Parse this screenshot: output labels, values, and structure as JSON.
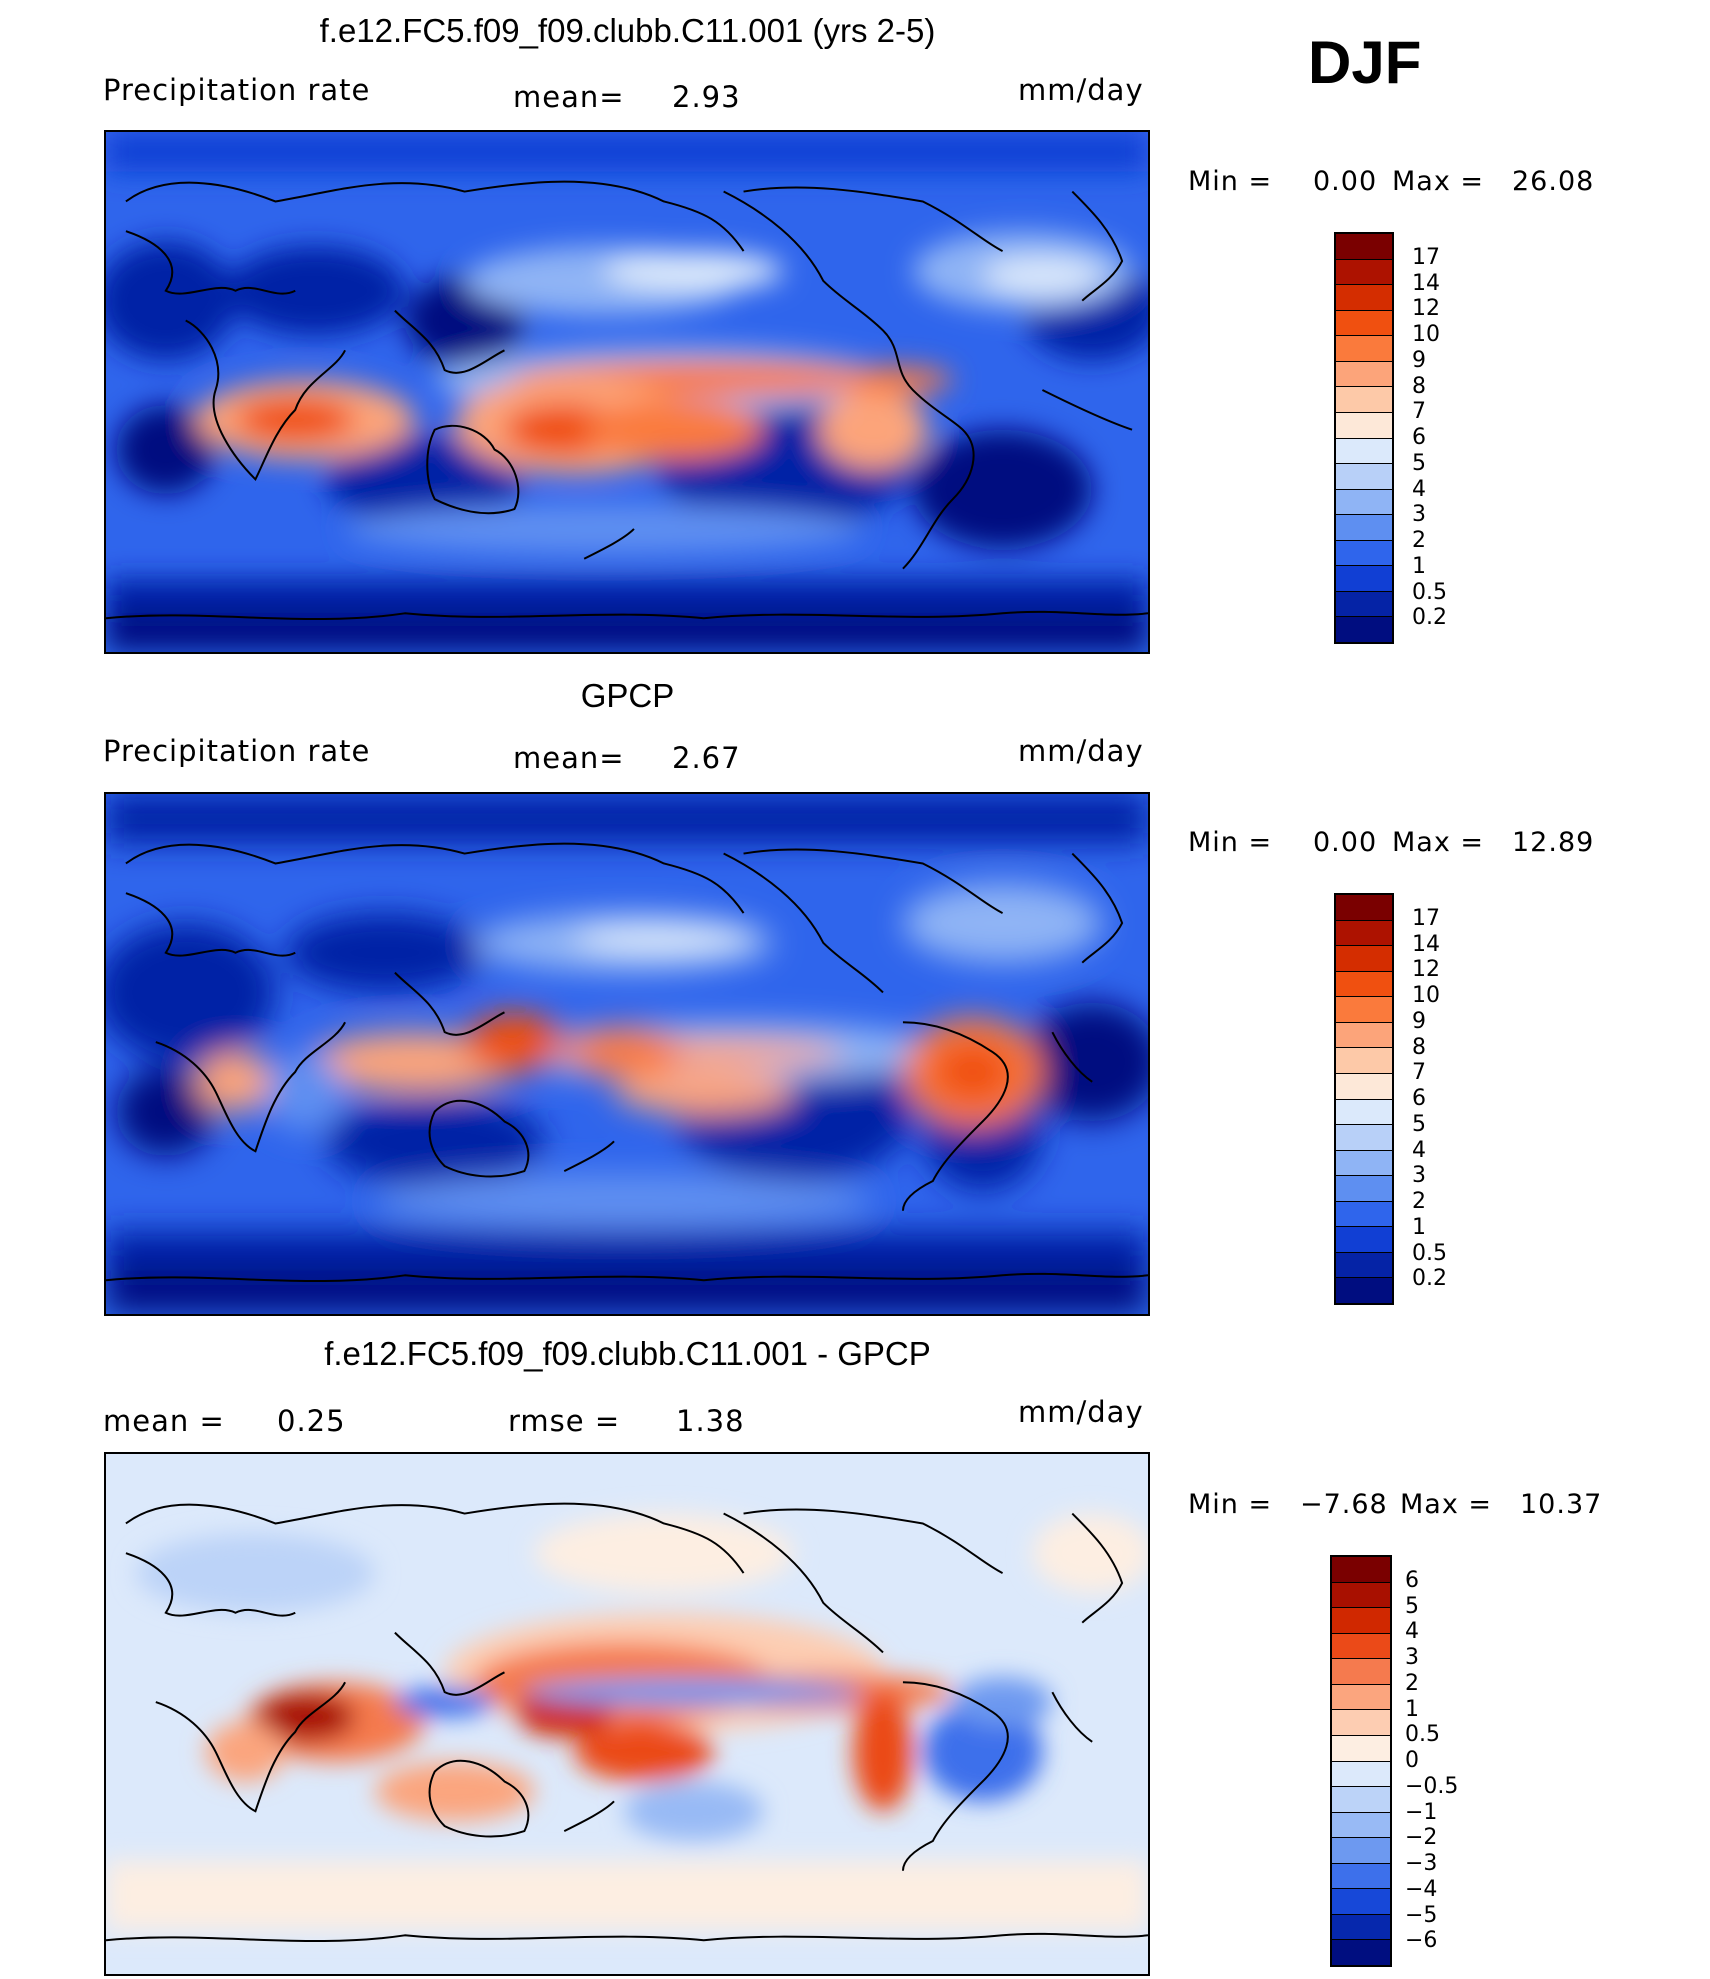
{
  "season": "DJF",
  "panels": [
    {
      "id": "model",
      "title": "f.e12.FC5.f09_f09.clubb.C11.001 (yrs 2-5)",
      "left_label": "Precipitation  rate",
      "center_label": "mean=",
      "center_value": "2.93",
      "units": "mm/day",
      "min_label": "Min  =",
      "min_value": "0.00",
      "max_label": "Max  =",
      "max_value": "26.08",
      "colorbar": {
        "colors": [
          "#7a0000",
          "#ad1200",
          "#d42d00",
          "#f05010",
          "#fa7a3c",
          "#fca47a",
          "#fdc9a8",
          "#fde8d8",
          "#dbe9fb",
          "#b8d0f8",
          "#8fb4f5",
          "#5e8ff1",
          "#2f65ec",
          "#113fd4",
          "#0523a6",
          "#000d80"
        ],
        "ticks": [
          "17",
          "14",
          "12",
          "10",
          "9",
          "8",
          "7",
          "6",
          "5",
          "4",
          "3",
          "2",
          "1",
          "0.5",
          "0.2"
        ]
      }
    },
    {
      "id": "obs",
      "title": "GPCP",
      "left_label": "Precipitation  rate",
      "center_label": "mean=",
      "center_value": "2.67",
      "units": "mm/day",
      "min_label": "Min  =",
      "min_value": "0.00",
      "max_label": "Max  =",
      "max_value": "12.89",
      "colorbar": {
        "colors": [
          "#7a0000",
          "#ad1200",
          "#d42d00",
          "#f05010",
          "#fa7a3c",
          "#fca47a",
          "#fdc9a8",
          "#fde8d8",
          "#dbe9fb",
          "#b8d0f8",
          "#8fb4f5",
          "#5e8ff1",
          "#2f65ec",
          "#113fd4",
          "#0523a6",
          "#000d80"
        ],
        "ticks": [
          "17",
          "14",
          "12",
          "10",
          "9",
          "8",
          "7",
          "6",
          "5",
          "4",
          "3",
          "2",
          "1",
          "0.5",
          "0.2"
        ]
      }
    },
    {
      "id": "diff",
      "title": "f.e12.FC5.f09_f09.clubb.C11.001 - GPCP",
      "left_label": "mean  =",
      "left_value": "0.25",
      "center_label": "rmse  =",
      "center_value": "1.38",
      "units": "mm/day",
      "min_label": "Min  =",
      "min_value": "−7.68",
      "max_label": "Max  =",
      "max_value": "10.37",
      "colorbar": {
        "colors": [
          "#7a0000",
          "#a81000",
          "#d02800",
          "#eb4a18",
          "#f57a4e",
          "#fba57e",
          "#fdcdb2",
          "#fdeee2",
          "#dce9fb",
          "#bcd3f8",
          "#98baf5",
          "#6d99f0",
          "#3d70eb",
          "#1748d8",
          "#0628ad",
          "#000e80"
        ],
        "ticks": [
          "6",
          "5",
          "4",
          "3",
          "2",
          "1",
          "0.5",
          "0",
          "−0.5",
          "−1",
          "−2",
          "−3",
          "−4",
          "−5",
          "−6"
        ]
      }
    }
  ]
}
